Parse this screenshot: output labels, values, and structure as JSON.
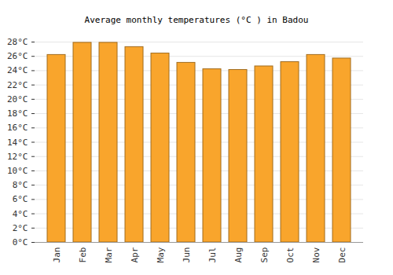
{
  "chart_data": {
    "type": "bar",
    "title": "Average monthly temperatures (°C ) in Badou",
    "categories": [
      "Jan",
      "Feb",
      "Mar",
      "Apr",
      "May",
      "Jun",
      "Jul",
      "Aug",
      "Sep",
      "Oct",
      "Nov",
      "Dec"
    ],
    "values": [
      26.2,
      27.9,
      27.9,
      27.3,
      26.4,
      25.1,
      24.2,
      24.1,
      24.6,
      25.2,
      26.2,
      25.7
    ],
    "color": "#f9a52c",
    "ylim": [
      0,
      28
    ],
    "yticks": [
      {
        "value": 0,
        "label": "0°C"
      },
      {
        "value": 2,
        "label": "2°C"
      },
      {
        "value": 4,
        "label": "4°C"
      },
      {
        "value": 6,
        "label": "6°C"
      },
      {
        "value": 8,
        "label": "8°C"
      },
      {
        "value": 10,
        "label": "10°C"
      },
      {
        "value": 12,
        "label": "12°C"
      },
      {
        "value": 14,
        "label": "14°C"
      },
      {
        "value": 16,
        "label": "16°C"
      },
      {
        "value": 18,
        "label": "18°C"
      },
      {
        "value": 20,
        "label": "20°C"
      },
      {
        "value": 22,
        "label": "22°C"
      },
      {
        "value": 24,
        "label": "24°C"
      },
      {
        "value": 26,
        "label": "26°C"
      },
      {
        "value": 28,
        "label": "28°C"
      }
    ],
    "grid": true
  }
}
